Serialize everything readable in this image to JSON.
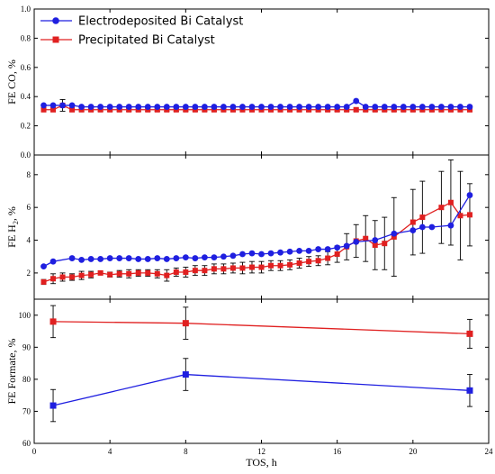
{
  "chart_data": [
    {
      "type": "line",
      "ylabel_main": "FE CO, ",
      "ylabel_unit": "%",
      "ylim": [
        0.0,
        1.0
      ],
      "yticks": [
        0.0,
        0.2,
        0.4,
        0.6,
        0.8,
        1.0
      ],
      "yticklabels": [
        "0.0",
        "0.2",
        "0.4",
        "0.6",
        "0.8",
        "1.0"
      ],
      "legend": {
        "position": "top-left",
        "entries": [
          "Electrodeposited Bi Catalyst",
          "Precipitated Bi Catalyst"
        ]
      },
      "series": [
        {
          "name": "Electrodeposited Bi Catalyst",
          "color": "#1f1fe0",
          "marker": "circle",
          "x": [
            0.5,
            1,
            1.5,
            2,
            2.5,
            3,
            3.5,
            4,
            4.5,
            5,
            5.5,
            6,
            6.5,
            7,
            7.5,
            8,
            8.5,
            9,
            9.5,
            10,
            10.5,
            11,
            11.5,
            12,
            12.5,
            13,
            13.5,
            14,
            14.5,
            15,
            15.5,
            16,
            16.5,
            17,
            17.5,
            18,
            18.5,
            19,
            19.5,
            20,
            20.5,
            21,
            21.5,
            22,
            22.5,
            23
          ],
          "values": [
            0.34,
            0.34,
            0.34,
            0.34,
            0.33,
            0.33,
            0.33,
            0.33,
            0.33,
            0.33,
            0.33,
            0.33,
            0.33,
            0.33,
            0.33,
            0.33,
            0.33,
            0.33,
            0.33,
            0.33,
            0.33,
            0.33,
            0.33,
            0.33,
            0.33,
            0.33,
            0.33,
            0.33,
            0.33,
            0.33,
            0.33,
            0.33,
            0.33,
            0.37,
            0.33,
            0.33,
            0.33,
            0.33,
            0.33,
            0.33,
            0.33,
            0.33,
            0.33,
            0.33,
            0.33,
            0.33
          ]
        },
        {
          "name": "Precipitated Bi Catalyst",
          "color": "#e02020",
          "marker": "square",
          "x": [
            0.5,
            1,
            1.5,
            2,
            2.5,
            3,
            3.5,
            4,
            4.5,
            5,
            5.5,
            6,
            6.5,
            7,
            7.5,
            8,
            8.5,
            9,
            9.5,
            10,
            10.5,
            11,
            11.5,
            12,
            12.5,
            13,
            13.5,
            14,
            14.5,
            15,
            15.5,
            16,
            16.5,
            17,
            17.5,
            18,
            18.5,
            19,
            19.5,
            20,
            20.5,
            21,
            21.5,
            22,
            22.5,
            23
          ],
          "values": [
            0.31,
            0.31,
            0.34,
            0.31,
            0.31,
            0.31,
            0.31,
            0.31,
            0.31,
            0.31,
            0.31,
            0.31,
            0.31,
            0.31,
            0.31,
            0.31,
            0.31,
            0.31,
            0.31,
            0.31,
            0.31,
            0.31,
            0.31,
            0.31,
            0.31,
            0.31,
            0.31,
            0.31,
            0.31,
            0.31,
            0.31,
            0.31,
            0.31,
            0.31,
            0.31,
            0.31,
            0.31,
            0.31,
            0.31,
            0.31,
            0.31,
            0.31,
            0.31,
            0.31,
            0.31,
            0.31
          ],
          "errors": [
            0.01,
            0.01,
            0.04,
            0.01,
            0.01,
            0.01,
            0.01,
            0.01,
            0.01,
            0.01,
            0.01,
            0.01,
            0.01,
            0.01,
            0.01,
            0.01,
            0.01,
            0.01,
            0.01,
            0.01,
            0.01,
            0.01,
            0.01,
            0.01,
            0.01,
            0.01,
            0.01,
            0.01,
            0.01,
            0.01,
            0.01,
            0.01,
            0.01,
            0.01,
            0.01,
            0.01,
            0.01,
            0.01,
            0.01,
            0.01,
            0.01,
            0.01,
            0.01,
            0.01,
            0.01,
            0.01
          ]
        }
      ]
    },
    {
      "type": "line",
      "ylabel_main": "FE H",
      "ylabel_sub": "2",
      "ylabel_unit": ", %",
      "ylim": [
        0.4,
        9.2
      ],
      "yticks": [
        2,
        4,
        6,
        8
      ],
      "yticklabels": [
        "2",
        "4",
        "6",
        "8"
      ],
      "series": [
        {
          "name": "Electrodeposited Bi Catalyst",
          "color": "#1f1fe0",
          "marker": "circle",
          "x": [
            0.5,
            1,
            2,
            2.5,
            3,
            3.5,
            4,
            4.5,
            5,
            5.5,
            6,
            6.5,
            7,
            7.5,
            8,
            8.5,
            9,
            9.5,
            10,
            10.5,
            11,
            11.5,
            12,
            12.5,
            13,
            13.5,
            14,
            14.5,
            15,
            15.5,
            16,
            16.5,
            17,
            18,
            19,
            20,
            20.5,
            21,
            22,
            23
          ],
          "values": [
            2.4,
            2.7,
            2.9,
            2.8,
            2.85,
            2.85,
            2.9,
            2.9,
            2.9,
            2.85,
            2.85,
            2.9,
            2.85,
            2.9,
            2.95,
            2.9,
            2.95,
            2.95,
            3.0,
            3.05,
            3.15,
            3.2,
            3.15,
            3.2,
            3.25,
            3.3,
            3.35,
            3.35,
            3.45,
            3.45,
            3.55,
            3.65,
            3.9,
            4.0,
            4.4,
            4.6,
            4.8,
            4.8,
            4.9,
            6.75
          ]
        },
        {
          "name": "Precipitated Bi Catalyst",
          "color": "#e02020",
          "marker": "square",
          "x": [
            0.5,
            1,
            1.5,
            2,
            2.5,
            3,
            3.5,
            4,
            4.5,
            5,
            5.5,
            6,
            6.5,
            7,
            7.5,
            8,
            8.5,
            9,
            9.5,
            10,
            10.5,
            11,
            11.5,
            12,
            12.5,
            13,
            13.5,
            14,
            14.5,
            15,
            15.5,
            16,
            16.5,
            17,
            17.5,
            18,
            18.5,
            19,
            20,
            20.5,
            21.5,
            22,
            22.5,
            23
          ],
          "values": [
            1.45,
            1.65,
            1.75,
            1.75,
            1.85,
            1.9,
            2.0,
            1.9,
            1.95,
            1.95,
            2.0,
            2.0,
            1.95,
            1.85,
            2.05,
            2.05,
            2.15,
            2.15,
            2.25,
            2.25,
            2.3,
            2.3,
            2.35,
            2.35,
            2.45,
            2.45,
            2.5,
            2.6,
            2.7,
            2.75,
            2.9,
            3.15,
            3.6,
            3.95,
            4.1,
            3.7,
            3.8,
            4.2,
            5.1,
            5.4,
            6.0,
            6.3,
            5.5,
            5.55
          ],
          "errors": [
            0.15,
            0.3,
            0.25,
            0.2,
            0.25,
            0.2,
            0.1,
            0.15,
            0.2,
            0.25,
            0.2,
            0.2,
            0.25,
            0.35,
            0.25,
            0.3,
            0.3,
            0.3,
            0.3,
            0.3,
            0.3,
            0.35,
            0.35,
            0.35,
            0.3,
            0.3,
            0.3,
            0.3,
            0.3,
            0.3,
            0.4,
            0.5,
            0.8,
            1.0,
            1.4,
            1.5,
            1.6,
            2.4,
            2.0,
            2.2,
            2.2,
            2.6,
            2.7,
            1.9
          ]
        }
      ]
    },
    {
      "type": "line",
      "ylabel_main": "FE Formate, ",
      "ylabel_unit": "%",
      "ylim": [
        60,
        105
      ],
      "yticks": [
        60,
        70,
        80,
        90,
        100
      ],
      "yticklabels": [
        "60",
        "70",
        "80",
        "90",
        "100"
      ],
      "xlabel": "TOS, h",
      "xlim": [
        0,
        24
      ],
      "xticks": [
        0,
        4,
        8,
        12,
        16,
        20,
        24
      ],
      "xticklabels": [
        "0",
        "4",
        "8",
        "12",
        "16",
        "20",
        "24"
      ],
      "series": [
        {
          "name": "Electrodeposited Bi Catalyst",
          "color": "#1f1fe0",
          "marker": "square",
          "x": [
            1,
            8,
            23
          ],
          "values": [
            71.8,
            81.5,
            76.5
          ],
          "errors": [
            5.0,
            5.0,
            5.0
          ]
        },
        {
          "name": "Precipitated Bi Catalyst",
          "color": "#e02020",
          "marker": "square",
          "x": [
            1,
            8,
            23
          ],
          "values": [
            98.0,
            97.5,
            94.2
          ],
          "errors": [
            5.0,
            5.0,
            4.5
          ]
        }
      ]
    }
  ]
}
